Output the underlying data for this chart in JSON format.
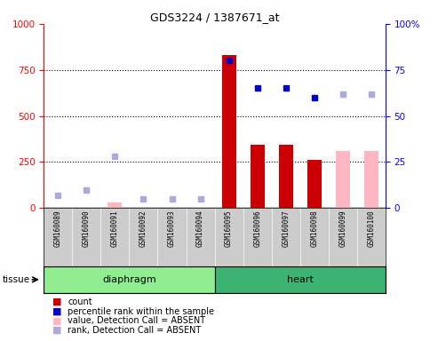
{
  "title": "GDS3224 / 1387671_at",
  "samples": [
    "GSM160089",
    "GSM160090",
    "GSM160091",
    "GSM160092",
    "GSM160093",
    "GSM160094",
    "GSM160095",
    "GSM160096",
    "GSM160097",
    "GSM160098",
    "GSM160099",
    "GSM160100"
  ],
  "count_values": [
    null,
    null,
    null,
    null,
    null,
    null,
    830,
    345,
    345,
    260,
    null,
    null
  ],
  "count_absent_values": [
    null,
    null,
    30,
    null,
    null,
    null,
    null,
    null,
    null,
    null,
    310,
    310
  ],
  "percentile_rank_values": [
    null,
    null,
    null,
    null,
    null,
    null,
    80,
    65,
    65,
    60,
    null,
    null
  ],
  "percentile_rank_absent_values": [
    7,
    10,
    28,
    5,
    5,
    5,
    null,
    null,
    null,
    null,
    62,
    62
  ],
  "bar_color_present": "#CC0000",
  "bar_color_absent": "#FFB6C1",
  "dot_color_present": "#0000CC",
  "dot_color_absent": "#AAAADD",
  "ylim_left": [
    0,
    1000
  ],
  "ylim_right": [
    0,
    100
  ],
  "yticks_left": [
    0,
    250,
    500,
    750,
    1000
  ],
  "yticks_right": [
    0,
    25,
    50,
    75,
    100
  ],
  "ytick_labels_left": [
    "0",
    "250",
    "500",
    "750",
    "1000"
  ],
  "ytick_labels_right": [
    "0",
    "25",
    "50",
    "75",
    "100%"
  ],
  "group_spans": [
    {
      "label": "diaphragm",
      "start": 0,
      "end": 5,
      "color": "#90EE90"
    },
    {
      "label": "heart",
      "start": 6,
      "end": 11,
      "color": "#3CB371"
    }
  ],
  "tissue_label": "tissue",
  "legend_items": [
    {
      "label": "count",
      "color": "#CC0000"
    },
    {
      "label": "percentile rank within the sample",
      "color": "#0000CC"
    },
    {
      "label": "value, Detection Call = ABSENT",
      "color": "#FFB6C1"
    },
    {
      "label": "rank, Detection Call = ABSENT",
      "color": "#AAAADD"
    }
  ]
}
